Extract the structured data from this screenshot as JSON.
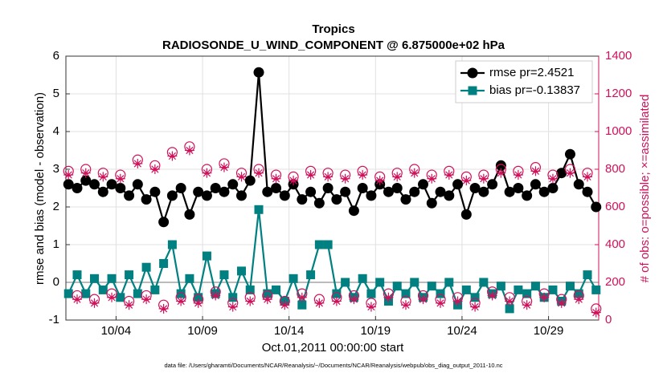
{
  "chart_data": {
    "type": "line",
    "title": "Tropics",
    "subtitle": "RADIOSONDE_U_WIND_COMPONENT @ 6.875000e+02 hPa",
    "xlabel": "Oct.01,2011 00:00:00 start",
    "ylabel": "rmse and bias (model - observation)",
    "y2label": "# of obs: o=possible; ×=assimilated",
    "footnote": "data file: /Users/gharamti/Documents/NCAR/Reanalysis/~/Documents/NCAR/Reanalysis/webpub/obs_diag_output_2011-10.nc",
    "x": [
      1.25,
      1.75,
      2.25,
      2.75,
      3.25,
      3.75,
      4.25,
      4.75,
      5.25,
      5.75,
      6.25,
      6.75,
      7.25,
      7.75,
      8.25,
      8.75,
      9.25,
      9.75,
      10.25,
      10.75,
      11.25,
      11.75,
      12.25,
      12.75,
      13.25,
      13.75,
      14.25,
      14.75,
      15.25,
      15.75,
      16.25,
      16.75,
      17.25,
      17.75,
      18.25,
      18.75,
      19.25,
      19.75,
      20.25,
      20.75,
      21.25,
      21.75,
      22.25,
      22.75,
      23.25,
      23.75,
      24.25,
      24.75,
      25.25,
      25.75,
      26.25,
      26.75,
      27.25,
      27.75,
      28.25,
      28.75,
      29.25,
      29.75,
      30.25,
      30.75,
      31.25,
      31.75
    ],
    "xlim": [
      1.1,
      31.9
    ],
    "xticks": [
      {
        "value": 4,
        "label": "10/04"
      },
      {
        "value": 9,
        "label": "10/09"
      },
      {
        "value": 14,
        "label": "10/14"
      },
      {
        "value": 19,
        "label": "10/19"
      },
      {
        "value": 24,
        "label": "10/24"
      },
      {
        "value": 29,
        "label": "10/29"
      }
    ],
    "ylim": [
      -1,
      6
    ],
    "yticks": [
      -1,
      0,
      1,
      2,
      3,
      4,
      5,
      6
    ],
    "y2lim": [
      0,
      1400
    ],
    "y2ticks": [
      0,
      200,
      400,
      600,
      800,
      1000,
      1200,
      1400
    ],
    "grid": true,
    "legend": "upper right",
    "series": [
      {
        "name": "rmse pr=2.4521",
        "color": "#000000",
        "marker": "circle",
        "values": [
          2.6,
          2.5,
          2.7,
          2.6,
          2.4,
          2.6,
          2.5,
          2.3,
          2.6,
          2.2,
          2.4,
          1.6,
          2.3,
          2.5,
          1.8,
          2.4,
          2.3,
          2.5,
          2.4,
          2.6,
          2.3,
          2.7,
          5.57,
          2.4,
          2.5,
          2.3,
          2.6,
          2.2,
          2.4,
          2.1,
          2.5,
          2.2,
          2.4,
          1.9,
          2.5,
          2.3,
          2.6,
          2.4,
          2.5,
          2.2,
          2.4,
          2.6,
          2.1,
          2.4,
          2.3,
          2.6,
          1.8,
          2.5,
          2.4,
          2.6,
          3.1,
          2.4,
          2.5,
          2.3,
          2.6,
          2.4,
          2.5,
          2.9,
          3.4,
          2.6,
          2.4,
          2.0
        ]
      },
      {
        "name": "bias pr=-0.13837",
        "color": "#008080",
        "marker": "square",
        "values": [
          -0.3,
          0.2,
          -0.3,
          0.1,
          -0.2,
          0.1,
          -0.4,
          0.2,
          -0.3,
          0.4,
          -0.2,
          0.5,
          1.0,
          -0.3,
          0.1,
          -0.4,
          0.7,
          -0.3,
          0.2,
          -0.4,
          0.3,
          -0.2,
          1.93,
          -0.3,
          -0.2,
          -0.5,
          0.1,
          -0.6,
          0.2,
          1.0,
          1.0,
          -0.3,
          0.0,
          -0.4,
          0.1,
          -0.3,
          0.0,
          -0.5,
          -0.1,
          -0.3,
          0.0,
          -0.4,
          -0.1,
          -0.3,
          0.0,
          -0.6,
          -0.2,
          -0.4,
          0.0,
          -0.3,
          -0.1,
          -0.7,
          -0.2,
          -0.3,
          -0.1,
          -0.4,
          -0.2,
          -0.5,
          -0.1,
          -0.3,
          0.2,
          -0.2
        ]
      },
      {
        "color": "#d0105a",
        "marker": "open-circle",
        "axis": "y2",
        "values": [
          790,
          130,
          800,
          110,
          780,
          140,
          770,
          100,
          850,
          130,
          820,
          80,
          890,
          120,
          920,
          110,
          800,
          150,
          830,
          90,
          780,
          120,
          800,
          130,
          770,
          100,
          760,
          140,
          790,
          110,
          780,
          120,
          770,
          130,
          790,
          90,
          760,
          140,
          780,
          100,
          800,
          130,
          770,
          110,
          790,
          120,
          760,
          90,
          770,
          150,
          800,
          120,
          790,
          100,
          810,
          140,
          770,
          110,
          800,
          130,
          780,
          60
        ]
      },
      {
        "color": "#d0105a",
        "marker": "asterisk",
        "axis": "y2",
        "values": [
          770,
          110,
          780,
          90,
          760,
          120,
          750,
          80,
          830,
          110,
          800,
          60,
          870,
          100,
          900,
          90,
          780,
          130,
          810,
          70,
          760,
          100,
          780,
          110,
          750,
          80,
          740,
          120,
          770,
          90,
          760,
          100,
          750,
          110,
          770,
          70,
          740,
          120,
          760,
          80,
          780,
          110,
          750,
          90,
          770,
          100,
          740,
          70,
          750,
          130,
          780,
          100,
          770,
          80,
          790,
          120,
          750,
          90,
          780,
          110,
          760,
          40
        ]
      }
    ]
  }
}
